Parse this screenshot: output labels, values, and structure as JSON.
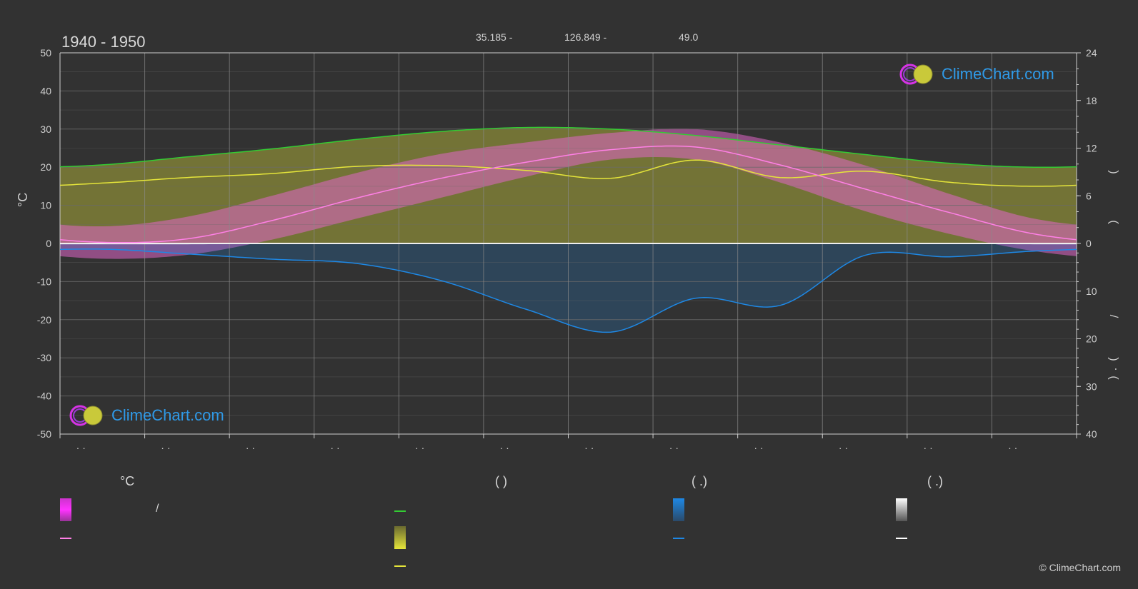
{
  "header": {
    "period": "1940 - 1950",
    "latitude": "35.185 -",
    "longitude": "126.849 -",
    "elevation": "49.0"
  },
  "brand": {
    "logo_text": "ClimeChart.com",
    "copyright": "© ClimeChart.com"
  },
  "axes": {
    "left_unit": "°C",
    "right_glyphs": [
      ")",
      "(",
      "/",
      ")",
      "·",
      "("
    ]
  },
  "legend": {
    "headers": [
      "°C",
      "(          )",
      "(    .)",
      "(    .)"
    ],
    "slash": "/"
  },
  "colors": {
    "background": "#323232",
    "daylight": "#33cc33",
    "sunshine_line": "#e5e53a",
    "sunshine_fill": "#a9a93a",
    "temp_fill": "#e066c8",
    "temp_line": "#ff80e6",
    "temp_extreme": "#cc33cc",
    "precip": "#1e88e5",
    "snow": "#ffffff",
    "grid": "#6a6a6a"
  },
  "chart_data": {
    "type": "line",
    "title": "",
    "left_axis": {
      "unit": "°C",
      "ylim": [
        -50,
        50
      ],
      "ticks": [
        50,
        40,
        30,
        20,
        10,
        0,
        -10,
        -20,
        -30,
        -40,
        -50
      ]
    },
    "right_axis_upper": {
      "ylim": [
        0,
        24
      ],
      "ticks": [
        24,
        18,
        12,
        6,
        0
      ]
    },
    "right_axis_lower": {
      "ylim": [
        0,
        40
      ],
      "ticks": [
        0,
        10,
        20,
        30,
        40
      ]
    },
    "months": 12,
    "month_tick_labels": [
      "· ·",
      "· ·",
      "· ·",
      "· ·",
      "· ·",
      "· ·",
      "· ·",
      "· ·",
      "· ·",
      "· ·",
      "· ·",
      "· ·"
    ],
    "grid": true,
    "series": [
      {
        "key": "daylight",
        "axis": "hours",
        "values": [
          9.9,
          10.9,
          11.9,
          13.1,
          14.1,
          14.6,
          14.4,
          13.6,
          12.4,
          11.2,
          10.1,
          9.6
        ]
      },
      {
        "key": "sunshine",
        "axis": "hours",
        "values": [
          7.6,
          8.3,
          8.8,
          9.7,
          9.8,
          9.2,
          8.2,
          10.5,
          8.3,
          9.1,
          7.7,
          7.2
        ]
      },
      {
        "key": "temp_mean",
        "axis": "celsius",
        "values": [
          0.3,
          1.2,
          6.0,
          11.9,
          17.1,
          21.3,
          24.6,
          25.3,
          20.6,
          14.3,
          8.1,
          2.5
        ]
      },
      {
        "key": "temp_max_band",
        "axis": "celsius",
        "values": [
          4.5,
          7.0,
          12.5,
          18.5,
          23.5,
          26.5,
          29.0,
          30.0,
          26.5,
          20.5,
          13.0,
          6.5
        ]
      },
      {
        "key": "temp_min_band",
        "axis": "celsius",
        "values": [
          -4.0,
          -3.0,
          1.0,
          6.5,
          12.0,
          17.5,
          22.0,
          22.0,
          16.0,
          8.5,
          2.5,
          -2.0
        ]
      },
      {
        "key": "precip",
        "axis": "mm",
        "values": [
          1.2,
          2.2,
          3.3,
          4.2,
          7.8,
          13.8,
          18.6,
          11.5,
          13.0,
          2.5,
          2.8,
          1.6
        ]
      },
      {
        "key": "snow",
        "axis": "mm",
        "values": [
          0.1,
          0.1,
          0,
          0,
          0,
          0,
          0,
          0,
          0,
          0,
          0,
          0.1
        ]
      }
    ]
  }
}
